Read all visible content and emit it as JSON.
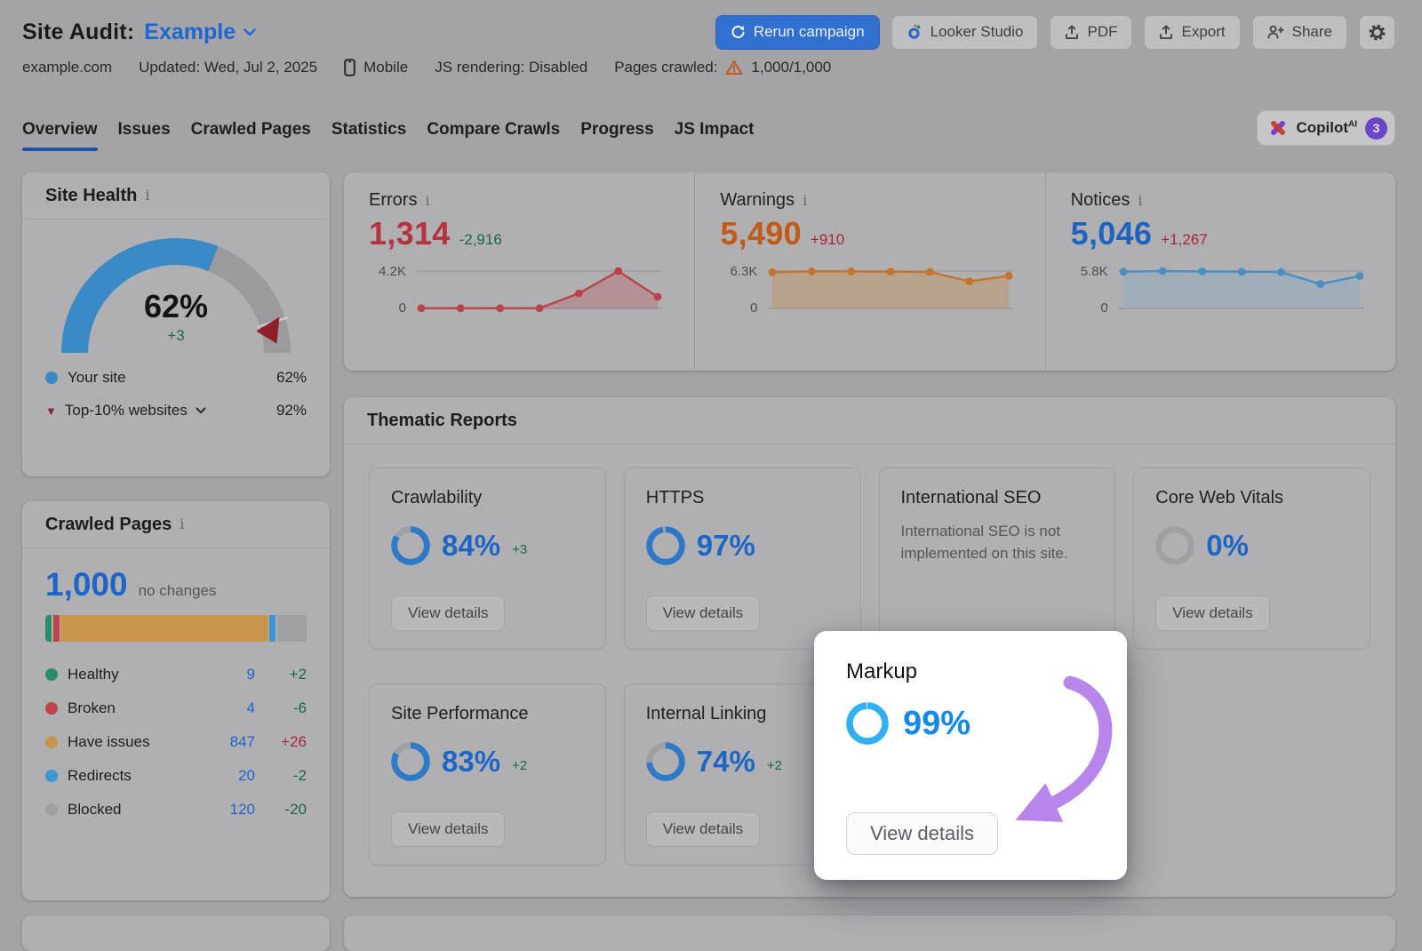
{
  "header": {
    "title": "Site Audit:",
    "project": "Example",
    "domain": "example.com",
    "updated": "Updated: Wed, Jul 2, 2025",
    "device": "Mobile",
    "js_rendering": "JS rendering: Disabled",
    "pages_crawled_label": "Pages crawled:",
    "pages_crawled_value": "1,000/1,000",
    "warning_color": "#c05a22",
    "buttons": {
      "rerun": "Rerun campaign",
      "looker": "Looker Studio",
      "pdf": "PDF",
      "export": "Export",
      "share": "Share"
    }
  },
  "tabs": {
    "active": "Overview",
    "items": [
      {
        "label": "Overview"
      },
      {
        "label": "Issues"
      },
      {
        "label": "Crawled Pages"
      },
      {
        "label": "Statistics"
      },
      {
        "label": "Compare Crawls"
      },
      {
        "label": "Progress"
      },
      {
        "label": "JS Impact"
      }
    ]
  },
  "copilot": {
    "label": "Copilot",
    "sup": "AI",
    "badge": "3"
  },
  "site_health": {
    "title": "Site Health",
    "score": 62,
    "score_label": "62%",
    "delta": "+3",
    "delta_color": "#1b6350",
    "arc_color": "#3a8ac8",
    "track_color": "#9b9b9f",
    "marker_color": "#8e1f2b",
    "benchmark": 92,
    "legend": [
      {
        "label": "Your site",
        "value": "62%",
        "marker_color": "#3a8ac8"
      },
      {
        "label": "Top-10% websites",
        "value": "92%",
        "marker_color": "#8e1f2b"
      }
    ]
  },
  "metrics": {
    "errors": {
      "title": "Errors",
      "value": "1,314",
      "value_color": "#b5333e",
      "delta": "-2,916",
      "delta_color": "#1b6350",
      "ymax_label": "4.2K",
      "ymin_label": "0",
      "axis_max": 4230,
      "values": [
        20,
        20,
        20,
        20,
        1700,
        4230,
        1314
      ],
      "line_color": "#b8434b",
      "fill_color": "rgba(184,67,75,0.28)"
    },
    "warnings": {
      "title": "Warnings",
      "value": "5,490",
      "value_color": "#c05a14",
      "delta": "+910",
      "delta_color": "#a8243b",
      "ymax_label": "6.3K",
      "ymin_label": "0",
      "axis_max": 6300,
      "values": [
        6100,
        6250,
        6250,
        6200,
        6150,
        4580,
        5490
      ],
      "line_color": "#c4742e",
      "fill_color": "rgba(196,146,90,0.45)"
    },
    "notices": {
      "title": "Notices",
      "value": "5,046",
      "value_color": "#1f63c0",
      "delta": "+1,267",
      "delta_color": "#a8243b",
      "ymax_label": "5.8K",
      "ymin_label": "0",
      "axis_max": 5800,
      "values": [
        5700,
        5800,
        5750,
        5700,
        5650,
        3779,
        5046
      ],
      "line_color": "#4a8fc0",
      "fill_color": "rgba(140,170,190,0.5)"
    }
  },
  "crawled_pages": {
    "title": "Crawled Pages",
    "total": "1,000",
    "total_color": "#2064c8",
    "note": "no changes",
    "rows": [
      {
        "label": "Healthy",
        "value": "9",
        "delta": "+2",
        "delta_color": "#1b6350",
        "color": "#2c8b68",
        "weight": 9
      },
      {
        "label": "Broken",
        "value": "4",
        "delta": "-6",
        "delta_color": "#1b6350",
        "color": "#bf4349",
        "weight": 4
      },
      {
        "label": "Have issues",
        "value": "847",
        "delta": "+26",
        "delta_color": "#a8243b",
        "color": "#c9954f",
        "weight": 847
      },
      {
        "label": "Redirects",
        "value": "20",
        "delta": "-2",
        "delta_color": "#1b6350",
        "color": "#3b97d3",
        "weight": 20
      },
      {
        "label": "Blocked",
        "value": "120",
        "delta": "-20",
        "delta_color": "#1b6350",
        "color": "#a0a0a4",
        "weight": 120
      }
    ]
  },
  "thematic": {
    "title": "Thematic Reports",
    "view_details": "View details",
    "donut_color": "#2e7ac9",
    "donut_track": "#9fa0a4",
    "percent_color": "#1d66c6",
    "delta_color": "#1b6350",
    "cards": [
      {
        "title": "Crawlability",
        "percent": "84%",
        "value": 84,
        "delta": "+3"
      },
      {
        "title": "HTTPS",
        "percent": "97%",
        "value": 97
      },
      {
        "title": "International SEO",
        "message": "International SEO is not implemented on this site."
      },
      {
        "title": "Core Web Vitals",
        "percent": "0%",
        "value": 0
      },
      {
        "title": "Site Performance",
        "percent": "83%",
        "value": 83,
        "delta": "+2"
      },
      {
        "title": "Internal Linking",
        "percent": "74%",
        "value": 74,
        "delta": "+2"
      }
    ]
  },
  "popup": {
    "title": "Markup",
    "percent": "99%",
    "value": 99,
    "button": "View details",
    "donut_color": "#2fb0f2",
    "donut_track": "#e6edf4",
    "percent_color": "#1688ea",
    "arrow_color": "#b886ea"
  }
}
